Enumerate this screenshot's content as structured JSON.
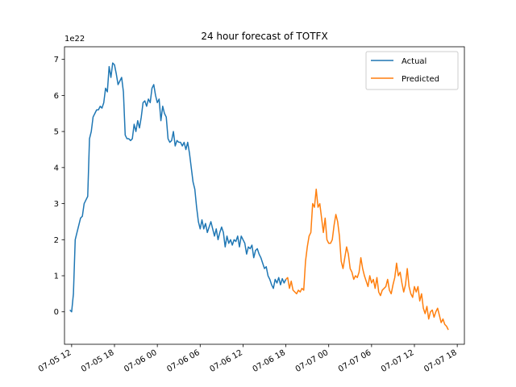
{
  "chart_data": {
    "type": "line",
    "title": "24 hour forecast of TOTFX",
    "xlabel": "",
    "ylabel": "",
    "y_offset_label": "1e22",
    "x_unit": "datetime",
    "xlim": [
      "2025-07-05T11:00",
      "2025-07-07T19:00"
    ],
    "ylim": [
      -0.9,
      7.35
    ],
    "y_ticks": [
      0,
      1,
      2,
      3,
      4,
      5,
      6,
      7
    ],
    "y_tick_labels": [
      "0",
      "1",
      "2",
      "3",
      "4",
      "5",
      "6",
      "7"
    ],
    "x_ticks": [
      "2025-07-05T12:00",
      "2025-07-05T18:00",
      "2025-07-06T00:00",
      "2025-07-06T06:00",
      "2025-07-06T12:00",
      "2025-07-06T18:00",
      "2025-07-07T00:00",
      "2025-07-07T06:00",
      "2025-07-07T12:00",
      "2025-07-07T18:00"
    ],
    "x_tick_labels": [
      "07-05 12",
      "07-05 18",
      "07-06 00",
      "07-06 06",
      "07-06 12",
      "07-06 18",
      "07-07 00",
      "07-07 06",
      "07-07 12",
      "07-07 18"
    ],
    "legend_position": "top-right",
    "grid": false,
    "series": [
      {
        "name": "Actual",
        "color": "#1f77b4",
        "points": [
          [
            "2025-07-05T11:45",
            0.05
          ],
          [
            "2025-07-05T12:00",
            0.0
          ],
          [
            "2025-07-05T12:15",
            0.5
          ],
          [
            "2025-07-05T12:30",
            2.0
          ],
          [
            "2025-07-05T12:45",
            2.2
          ],
          [
            "2025-07-05T13:00",
            2.4
          ],
          [
            "2025-07-05T13:15",
            2.6
          ],
          [
            "2025-07-05T13:30",
            2.65
          ],
          [
            "2025-07-05T13:45",
            3.0
          ],
          [
            "2025-07-05T14:00",
            3.1
          ],
          [
            "2025-07-05T14:15",
            3.2
          ],
          [
            "2025-07-05T14:30",
            4.8
          ],
          [
            "2025-07-05T14:45",
            5.0
          ],
          [
            "2025-07-05T15:00",
            5.4
          ],
          [
            "2025-07-05T15:15",
            5.5
          ],
          [
            "2025-07-05T15:30",
            5.6
          ],
          [
            "2025-07-05T15:45",
            5.6
          ],
          [
            "2025-07-05T16:00",
            5.7
          ],
          [
            "2025-07-05T16:15",
            5.65
          ],
          [
            "2025-07-05T16:30",
            5.8
          ],
          [
            "2025-07-05T16:45",
            6.2
          ],
          [
            "2025-07-05T17:00",
            6.1
          ],
          [
            "2025-07-05T17:15",
            6.8
          ],
          [
            "2025-07-05T17:30",
            6.5
          ],
          [
            "2025-07-05T17:45",
            6.9
          ],
          [
            "2025-07-05T18:00",
            6.85
          ],
          [
            "2025-07-05T18:15",
            6.6
          ],
          [
            "2025-07-05T18:30",
            6.3
          ],
          [
            "2025-07-05T18:45",
            6.4
          ],
          [
            "2025-07-05T19:00",
            6.5
          ],
          [
            "2025-07-05T19:15",
            6.1
          ],
          [
            "2025-07-05T19:30",
            4.9
          ],
          [
            "2025-07-05T19:45",
            4.8
          ],
          [
            "2025-07-05T20:00",
            4.8
          ],
          [
            "2025-07-05T20:15",
            4.75
          ],
          [
            "2025-07-05T20:30",
            4.8
          ],
          [
            "2025-07-05T20:45",
            5.2
          ],
          [
            "2025-07-05T21:00",
            5.0
          ],
          [
            "2025-07-05T21:15",
            5.3
          ],
          [
            "2025-07-05T21:30",
            5.1
          ],
          [
            "2025-07-05T21:45",
            5.4
          ],
          [
            "2025-07-05T22:00",
            5.8
          ],
          [
            "2025-07-05T22:15",
            5.85
          ],
          [
            "2025-07-05T22:30",
            5.7
          ],
          [
            "2025-07-05T22:45",
            5.9
          ],
          [
            "2025-07-05T23:00",
            5.8
          ],
          [
            "2025-07-05T23:15",
            6.2
          ],
          [
            "2025-07-05T23:30",
            6.3
          ],
          [
            "2025-07-05T23:45",
            6.0
          ],
          [
            "2025-07-06T00:00",
            5.8
          ],
          [
            "2025-07-06T00:15",
            5.9
          ],
          [
            "2025-07-06T00:30",
            5.3
          ],
          [
            "2025-07-06T00:45",
            5.7
          ],
          [
            "2025-07-06T01:00",
            5.5
          ],
          [
            "2025-07-06T01:15",
            5.4
          ],
          [
            "2025-07-06T01:30",
            4.8
          ],
          [
            "2025-07-06T01:45",
            4.7
          ],
          [
            "2025-07-06T02:00",
            4.75
          ],
          [
            "2025-07-06T02:15",
            5.0
          ],
          [
            "2025-07-06T02:30",
            4.6
          ],
          [
            "2025-07-06T02:45",
            4.75
          ],
          [
            "2025-07-06T03:00",
            4.7
          ],
          [
            "2025-07-06T03:15",
            4.7
          ],
          [
            "2025-07-06T03:30",
            4.6
          ],
          [
            "2025-07-06T03:45",
            4.7
          ],
          [
            "2025-07-06T04:00",
            4.5
          ],
          [
            "2025-07-06T04:15",
            4.7
          ],
          [
            "2025-07-06T04:30",
            4.4
          ],
          [
            "2025-07-06T04:45",
            4.0
          ],
          [
            "2025-07-06T05:00",
            3.6
          ],
          [
            "2025-07-06T05:15",
            3.4
          ],
          [
            "2025-07-06T05:30",
            2.9
          ],
          [
            "2025-07-06T05:45",
            2.5
          ],
          [
            "2025-07-06T06:00",
            2.3
          ],
          [
            "2025-07-06T06:15",
            2.55
          ],
          [
            "2025-07-06T06:30",
            2.3
          ],
          [
            "2025-07-06T06:45",
            2.45
          ],
          [
            "2025-07-06T07:00",
            2.2
          ],
          [
            "2025-07-06T07:15",
            2.35
          ],
          [
            "2025-07-06T07:30",
            2.5
          ],
          [
            "2025-07-06T07:45",
            2.3
          ],
          [
            "2025-07-06T08:00",
            2.1
          ],
          [
            "2025-07-06T08:15",
            2.3
          ],
          [
            "2025-07-06T08:30",
            2.0
          ],
          [
            "2025-07-06T08:45",
            2.2
          ],
          [
            "2025-07-06T09:00",
            2.35
          ],
          [
            "2025-07-06T09:15",
            2.2
          ],
          [
            "2025-07-06T09:30",
            1.8
          ],
          [
            "2025-07-06T09:45",
            2.1
          ],
          [
            "2025-07-06T10:00",
            1.9
          ],
          [
            "2025-07-06T10:15",
            2.0
          ],
          [
            "2025-07-06T10:30",
            1.85
          ],
          [
            "2025-07-06T10:45",
            2.0
          ],
          [
            "2025-07-06T11:00",
            1.95
          ],
          [
            "2025-07-06T11:15",
            2.1
          ],
          [
            "2025-07-06T11:30",
            1.8
          ],
          [
            "2025-07-06T11:45",
            2.1
          ],
          [
            "2025-07-06T12:00",
            2.0
          ],
          [
            "2025-07-06T12:15",
            1.9
          ],
          [
            "2025-07-06T12:30",
            1.6
          ],
          [
            "2025-07-06T12:45",
            1.8
          ],
          [
            "2025-07-06T13:00",
            1.75
          ],
          [
            "2025-07-06T13:15",
            1.85
          ],
          [
            "2025-07-06T13:30",
            1.5
          ],
          [
            "2025-07-06T13:45",
            1.7
          ],
          [
            "2025-07-06T14:00",
            1.75
          ],
          [
            "2025-07-06T14:15",
            1.6
          ],
          [
            "2025-07-06T14:30",
            1.5
          ],
          [
            "2025-07-06T14:45",
            1.35
          ],
          [
            "2025-07-06T15:00",
            1.2
          ],
          [
            "2025-07-06T15:15",
            1.25
          ],
          [
            "2025-07-06T15:30",
            1.0
          ],
          [
            "2025-07-06T15:45",
            0.9
          ],
          [
            "2025-07-06T16:00",
            0.75
          ],
          [
            "2025-07-06T16:15",
            0.65
          ],
          [
            "2025-07-06T16:30",
            0.9
          ],
          [
            "2025-07-06T16:45",
            0.8
          ],
          [
            "2025-07-06T17:00",
            0.95
          ],
          [
            "2025-07-06T17:15",
            0.75
          ],
          [
            "2025-07-06T17:30",
            0.92
          ],
          [
            "2025-07-06T17:45",
            0.8
          ],
          [
            "2025-07-06T18:00",
            0.9
          ]
        ]
      },
      {
        "name": "Predicted",
        "color": "#ff7f0e",
        "points": [
          [
            "2025-07-06T18:00",
            0.9
          ],
          [
            "2025-07-06T18:15",
            0.95
          ],
          [
            "2025-07-06T18:30",
            0.65
          ],
          [
            "2025-07-06T18:45",
            0.85
          ],
          [
            "2025-07-06T19:00",
            0.6
          ],
          [
            "2025-07-06T19:15",
            0.55
          ],
          [
            "2025-07-06T19:30",
            0.5
          ],
          [
            "2025-07-06T19:45",
            0.6
          ],
          [
            "2025-07-06T20:00",
            0.55
          ],
          [
            "2025-07-06T20:15",
            0.65
          ],
          [
            "2025-07-06T20:30",
            0.6
          ],
          [
            "2025-07-06T20:45",
            1.4
          ],
          [
            "2025-07-06T21:00",
            1.8
          ],
          [
            "2025-07-06T21:15",
            2.1
          ],
          [
            "2025-07-06T21:30",
            2.2
          ],
          [
            "2025-07-06T21:45",
            3.0
          ],
          [
            "2025-07-06T22:00",
            2.9
          ],
          [
            "2025-07-06T22:15",
            3.4
          ],
          [
            "2025-07-06T22:30",
            2.9
          ],
          [
            "2025-07-06T22:45",
            3.0
          ],
          [
            "2025-07-06T23:00",
            2.6
          ],
          [
            "2025-07-06T23:15",
            2.2
          ],
          [
            "2025-07-06T23:30",
            2.6
          ],
          [
            "2025-07-06T23:45",
            2.0
          ],
          [
            "2025-07-07T00:00",
            1.9
          ],
          [
            "2025-07-07T00:15",
            1.9
          ],
          [
            "2025-07-07T00:30",
            2.0
          ],
          [
            "2025-07-07T00:45",
            2.4
          ],
          [
            "2025-07-07T01:00",
            2.7
          ],
          [
            "2025-07-07T01:15",
            2.5
          ],
          [
            "2025-07-07T01:30",
            2.1
          ],
          [
            "2025-07-07T01:45",
            1.4
          ],
          [
            "2025-07-07T02:00",
            1.2
          ],
          [
            "2025-07-07T02:15",
            1.5
          ],
          [
            "2025-07-07T02:30",
            1.8
          ],
          [
            "2025-07-07T02:45",
            1.6
          ],
          [
            "2025-07-07T03:00",
            1.2
          ],
          [
            "2025-07-07T03:15",
            1.1
          ],
          [
            "2025-07-07T03:30",
            0.9
          ],
          [
            "2025-07-07T03:45",
            1.0
          ],
          [
            "2025-07-07T04:00",
            0.95
          ],
          [
            "2025-07-07T04:15",
            1.1
          ],
          [
            "2025-07-07T04:30",
            1.5
          ],
          [
            "2025-07-07T04:45",
            1.2
          ],
          [
            "2025-07-07T05:00",
            1.0
          ],
          [
            "2025-07-07T05:15",
            0.85
          ],
          [
            "2025-07-07T05:30",
            0.7
          ],
          [
            "2025-07-07T05:45",
            1.0
          ],
          [
            "2025-07-07T06:00",
            0.8
          ],
          [
            "2025-07-07T06:15",
            0.9
          ],
          [
            "2025-07-07T06:30",
            0.65
          ],
          [
            "2025-07-07T06:45",
            0.95
          ],
          [
            "2025-07-07T07:00",
            0.55
          ],
          [
            "2025-07-07T07:15",
            0.45
          ],
          [
            "2025-07-07T07:30",
            0.6
          ],
          [
            "2025-07-07T07:45",
            0.65
          ],
          [
            "2025-07-07T08:00",
            0.7
          ],
          [
            "2025-07-07T08:15",
            0.9
          ],
          [
            "2025-07-07T08:30",
            0.6
          ],
          [
            "2025-07-07T08:45",
            0.5
          ],
          [
            "2025-07-07T09:00",
            0.75
          ],
          [
            "2025-07-07T09:15",
            0.95
          ],
          [
            "2025-07-07T09:30",
            1.35
          ],
          [
            "2025-07-07T09:45",
            1.0
          ],
          [
            "2025-07-07T10:00",
            1.1
          ],
          [
            "2025-07-07T10:15",
            0.8
          ],
          [
            "2025-07-07T10:30",
            0.55
          ],
          [
            "2025-07-07T10:45",
            0.75
          ],
          [
            "2025-07-07T11:00",
            1.2
          ],
          [
            "2025-07-07T11:15",
            0.7
          ],
          [
            "2025-07-07T11:30",
            0.5
          ],
          [
            "2025-07-07T11:45",
            0.4
          ],
          [
            "2025-07-07T12:00",
            0.7
          ],
          [
            "2025-07-07T12:15",
            0.55
          ],
          [
            "2025-07-07T12:30",
            0.7
          ],
          [
            "2025-07-07T12:45",
            0.3
          ],
          [
            "2025-07-07T13:00",
            0.5
          ],
          [
            "2025-07-07T13:15",
            0.1
          ],
          [
            "2025-07-07T13:30",
            -0.05
          ],
          [
            "2025-07-07T13:45",
            0.15
          ],
          [
            "2025-07-07T14:00",
            -0.2
          ],
          [
            "2025-07-07T14:15",
            0.0
          ],
          [
            "2025-07-07T14:30",
            0.05
          ],
          [
            "2025-07-07T14:45",
            -0.15
          ],
          [
            "2025-07-07T15:00",
            0.0
          ],
          [
            "2025-07-07T15:15",
            0.1
          ],
          [
            "2025-07-07T15:30",
            -0.1
          ],
          [
            "2025-07-07T15:45",
            -0.3
          ],
          [
            "2025-07-07T16:00",
            -0.2
          ],
          [
            "2025-07-07T16:15",
            -0.35
          ],
          [
            "2025-07-07T16:30",
            -0.4
          ],
          [
            "2025-07-07T16:45",
            -0.5
          ]
        ]
      }
    ]
  }
}
